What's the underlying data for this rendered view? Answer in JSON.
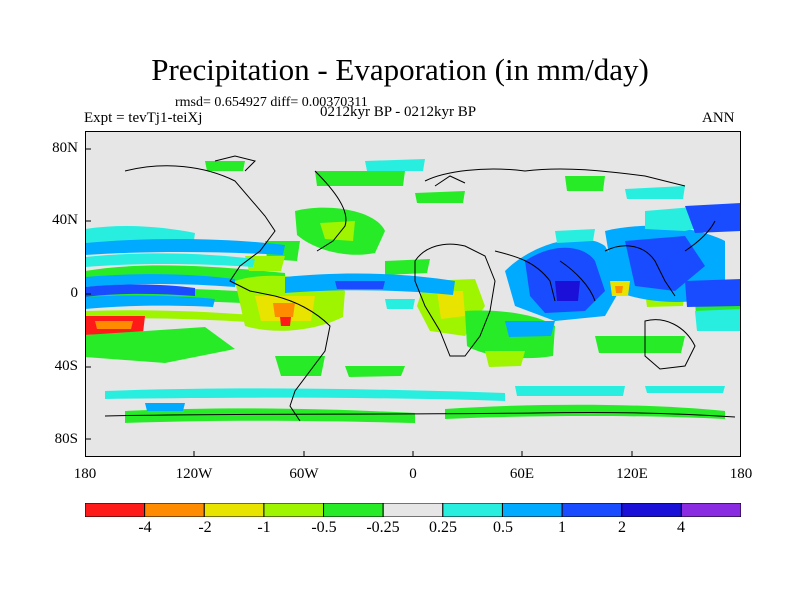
{
  "title": "Precipitation - Evaporation (in mm/day)",
  "stats": "rmsd= 0.654927 diff= 0.00370311",
  "experiment": "Expt = tevTj1-teiXj",
  "period": "0212kyr BP - 0212kyr BP",
  "season": "ANN",
  "lat_labels": [
    "80N",
    "40N",
    "0",
    "40S",
    "80S"
  ],
  "lon_labels": [
    "180",
    "120W",
    "60W",
    "0",
    "60E",
    "120E",
    "180"
  ],
  "colorbar": {
    "labels": [
      "-4",
      "-2",
      "-1",
      "-0.5",
      "-0.25",
      "0.25",
      "0.5",
      "1",
      "2",
      "4"
    ],
    "colors": [
      "#ff1a1a",
      "#ff8c00",
      "#e8e400",
      "#9ff400",
      "#28eb28",
      "#e6e6e6",
      "#28eee0",
      "#00aaff",
      "#1a4cff",
      "#1a10d8",
      "#8a2be2"
    ]
  }
}
